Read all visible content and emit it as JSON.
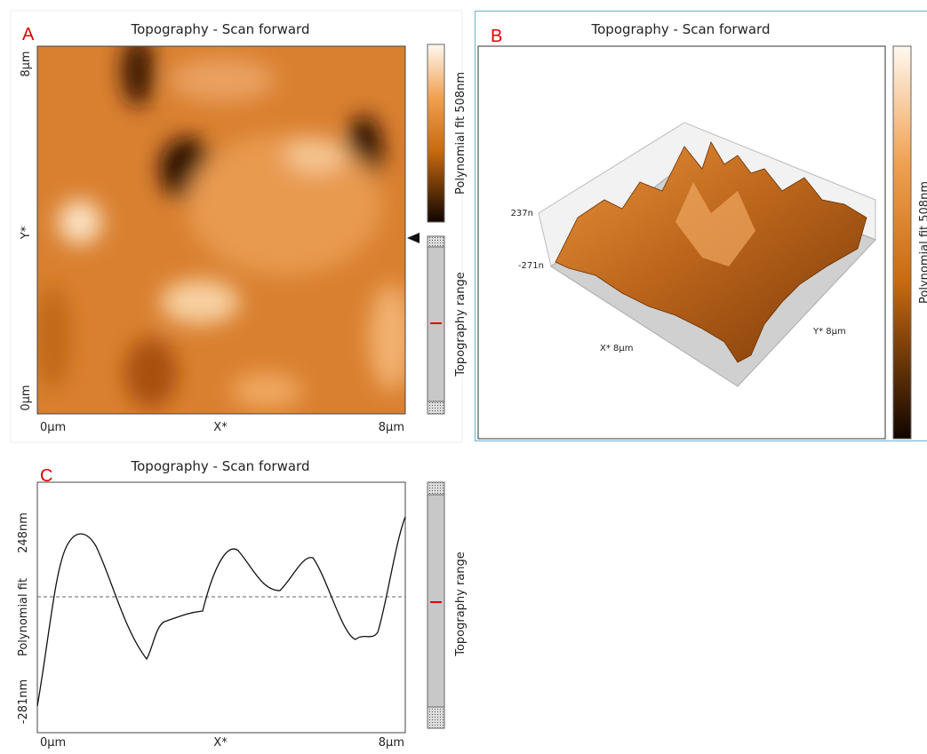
{
  "panels": [
    {
      "letter": "A",
      "title": "Topography - Scan forward",
      "y_axis": {
        "top": "8µm",
        "middle": "Y*",
        "bottom": "0µm"
      },
      "x_axis": {
        "left": "0µm",
        "middle": "X*",
        "right": "8µm"
      },
      "colorbar_label": "Polynomial fit 508nm",
      "range_label": "Topography range"
    },
    {
      "letter": "B",
      "title": "Topography - Scan forward",
      "z_top": "237n",
      "z_bottom": "-271n",
      "x_label": "X* 8µm",
      "y_label": "Y* 8µm",
      "colorbar_label": "Polynomial fit 508nm"
    },
    {
      "letter": "C",
      "title": "Topography - Scan forward",
      "y_axis": {
        "top": "248nm",
        "label": "Polynomial fit",
        "bottom": "-281nm"
      },
      "x_axis": {
        "left": "0µm",
        "middle": "X*",
        "right": "8µm"
      },
      "range_label": "Topography range"
    }
  ]
}
